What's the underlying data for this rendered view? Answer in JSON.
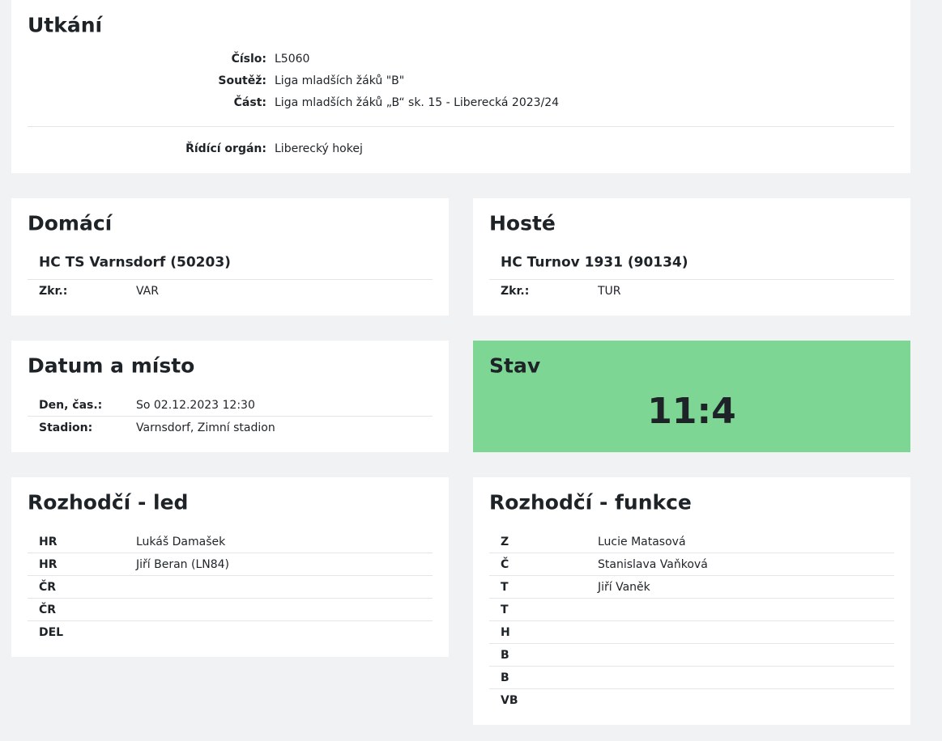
{
  "match": {
    "title": "Utkání",
    "fields": [
      {
        "label": "Číslo:",
        "value": "L5060"
      },
      {
        "label": "Soutěž:",
        "value": "Liga mladších žáků \"B\""
      },
      {
        "label": "Část:",
        "value": "Liga mladších žáků „B“ sk. 15 - Liberecká 2023/24"
      }
    ],
    "authority": {
      "label": "Řídící orgán:",
      "value": "Liberecký hokej"
    }
  },
  "home": {
    "title": "Domácí",
    "team": "HC TS Varnsdorf (50203)",
    "rows": [
      {
        "label": "Zkr.:",
        "value": "VAR"
      }
    ]
  },
  "away": {
    "title": "Hosté",
    "team": "HC Turnov 1931 (90134)",
    "rows": [
      {
        "label": "Zkr.:",
        "value": "TUR"
      }
    ]
  },
  "date_place": {
    "title": "Datum a místo",
    "rows": [
      {
        "label": "Den, čas.:",
        "value": "So 02.12.2023 12:30"
      },
      {
        "label": "Stadion:",
        "value": "Varnsdorf, Zimní stadion"
      }
    ]
  },
  "score": {
    "title": "Stav",
    "value": "11:4"
  },
  "referees_ice": {
    "title": "Rozhodčí - led",
    "rows": [
      {
        "label": "HR",
        "value": "Lukáš Damašek"
      },
      {
        "label": "HR",
        "value": "Jiří Beran (LN84)"
      },
      {
        "label": "ČR"
      },
      {
        "label": "ČR"
      },
      {
        "label": "DEL"
      }
    ]
  },
  "referees_functions": {
    "title": "Rozhodčí - funkce",
    "rows": [
      {
        "label": "Z",
        "value": "Lucie Matasová"
      },
      {
        "label": "Č",
        "value": "Stanislava Vaňková"
      },
      {
        "label": "T",
        "value": "Jiří Vaněk"
      },
      {
        "label": "T"
      },
      {
        "label": "H"
      },
      {
        "label": "B"
      },
      {
        "label": "B"
      },
      {
        "label": "VB"
      }
    ]
  }
}
